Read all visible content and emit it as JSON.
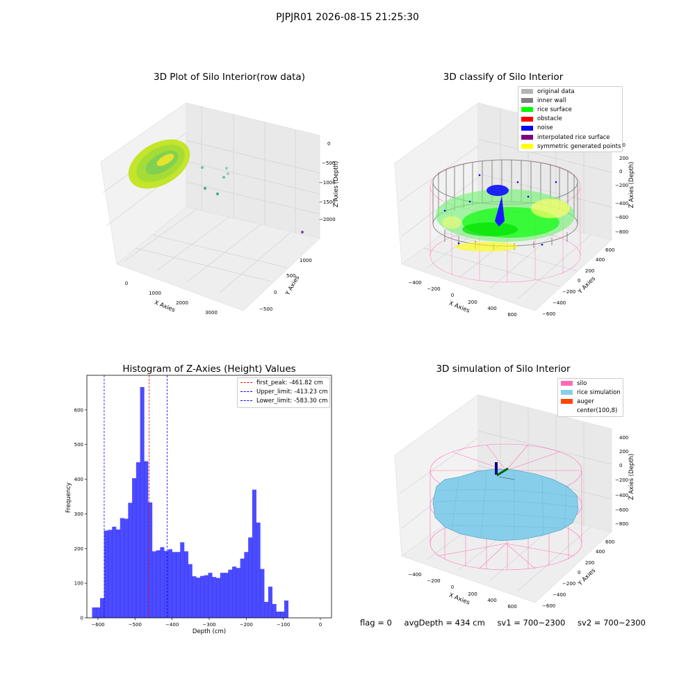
{
  "suptitle": "PJPJR01 2026-08-15 21:25:30",
  "status": {
    "flag": "flag = 0",
    "avg_depth": "avgDepth = 434 cm",
    "sv1": "sv1 = 700~2300",
    "sv2": "sv2 = 700~2300"
  },
  "chart_data": [
    {
      "type": "scatter",
      "projection": "3d",
      "title": "3D Plot of Silo Interior(row data)",
      "xlabel": "X Axies",
      "ylabel": "Y Axies",
      "zlabel": "Z Axies (Depth)",
      "x_ticks": [
        "0",
        "1000",
        "2000",
        "3000"
      ],
      "y_ticks": [
        "−500",
        "0",
        "500",
        "1000"
      ],
      "z_ticks": [
        "0",
        "−500",
        "−1000",
        "−1500",
        "−2000"
      ],
      "grid": true,
      "colormap": [
        "#44b98a",
        "#b6de2b",
        "#fde725"
      ],
      "description_points": "dense ellipsoidal cluster of points near x≈0, plus a few scattered outliers"
    },
    {
      "type": "scatter",
      "projection": "3d",
      "title": "3D classify of Silo Interior",
      "zlabel": "Z Axies (Depth)",
      "xlabel": "X Axies",
      "ylabel": "Y Axies",
      "x_ticks": [
        "−400",
        "−200",
        "0",
        "200",
        "400",
        "600"
      ],
      "y_ticks": [
        "−600",
        "−400",
        "−200",
        "0",
        "200",
        "400",
        "600"
      ],
      "z_ticks": [
        "200",
        "0",
        "−200",
        "−400",
        "−600",
        "−800"
      ],
      "z_tick_partial": "00",
      "grid": true,
      "legend": {
        "placement": "upper right",
        "entries": [
          {
            "label": "original data",
            "color": "#b4b4b4"
          },
          {
            "label": "inner wall",
            "color": "#808080"
          },
          {
            "label": "rice surface",
            "color": "#00ff00"
          },
          {
            "label": "obstacle",
            "color": "#ff0000"
          },
          {
            "label": "noise",
            "color": "#0000ff"
          },
          {
            "label": "interpolated rice surface",
            "color": "#800080"
          },
          {
            "label": "symmetric generated points",
            "color": "#ffff00"
          }
        ]
      }
    },
    {
      "type": "bar",
      "subtype": "histogram",
      "title": "Histogram of Z-Axies (Height) Values",
      "xlabel": "Depth (cm)",
      "ylabel": "Frequency",
      "xlim": [
        -630,
        30
      ],
      "ylim": [
        0,
        700
      ],
      "x_ticks": [
        -600,
        -500,
        -400,
        -300,
        -200,
        -100,
        0
      ],
      "y_ticks": [
        0,
        100,
        200,
        300,
        400,
        500,
        600
      ],
      "bar_color": "#0000ff",
      "bar_alpha": 0.7,
      "bin_width": 10.8,
      "bins_start": -616,
      "values": [
        30,
        30,
        57,
        252,
        254,
        263,
        255,
        288,
        286,
        332,
        403,
        449,
        666,
        452,
        333,
        192,
        195,
        204,
        193,
        198,
        190,
        190,
        218,
        192,
        155,
        120,
        116,
        121,
        123,
        130,
        118,
        115,
        130,
        130,
        139,
        148,
        144,
        171,
        190,
        232,
        370,
        275,
        141,
        46,
        90,
        40,
        18,
        18,
        50
      ],
      "vlines": [
        {
          "label": "first_peak: -461.82 cm",
          "x": -461.82,
          "color": "#ff0000"
        },
        {
          "label": "Upper_limit: -413.23 cm",
          "x": -413.23,
          "color": "#0000ff"
        },
        {
          "label": "Lower_limit: -583.30 cm",
          "x": -583.3,
          "color": "#0000ff"
        }
      ],
      "legend": {
        "placement": "upper right"
      },
      "grid": false
    },
    {
      "type": "surface",
      "projection": "3d",
      "title": "3D simulation of Silo Interior",
      "xlabel": "X Axies",
      "ylabel": "Y Axies",
      "zlabel": "Z Axies (Depth)",
      "x_ticks": [
        "−400",
        "−200",
        "0",
        "200",
        "400",
        "600"
      ],
      "y_ticks": [
        "−600",
        "−400",
        "−200",
        "0",
        "200",
        "400",
        "600"
      ],
      "z_ticks": [
        "400",
        "200",
        "0",
        "−200",
        "−400",
        "−600",
        "−800"
      ],
      "grid": true,
      "legend": {
        "placement": "upper right",
        "entries": [
          {
            "label": "silo",
            "color": "#ff69b4"
          },
          {
            "label": "rice simulation",
            "color": "#87ceeb"
          },
          {
            "label": "auger",
            "color": "#ff4500"
          },
          {
            "label": "center(100,8)",
            "color": "#ffffff"
          }
        ]
      }
    }
  ]
}
